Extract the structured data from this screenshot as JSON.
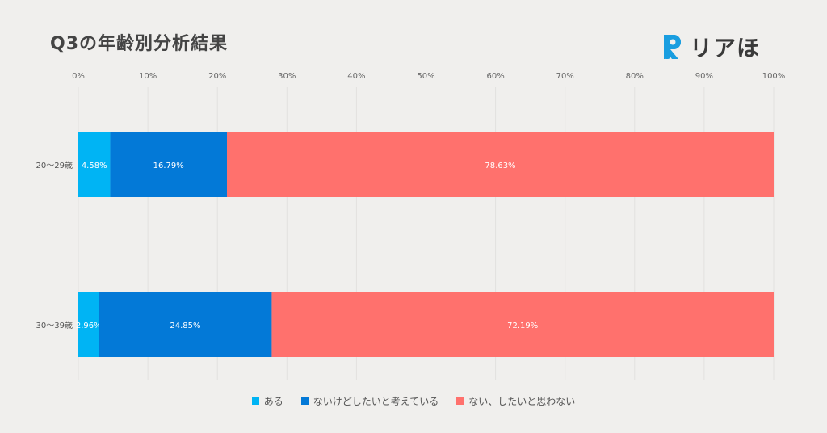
{
  "header": {
    "title": "Q3の年齢別分析結果"
  },
  "logo": {
    "text": "リアほ",
    "accent": "#1a9ee0"
  },
  "chart_data": {
    "type": "bar",
    "orientation": "horizontal",
    "stacked": true,
    "categories": [
      "20〜29歳",
      "30〜39歳"
    ],
    "series": [
      {
        "name": "ある",
        "values": [
          4.58,
          2.96
        ],
        "color": "#00b4f4"
      },
      {
        "name": "ないけどしたいと考えている",
        "values": [
          16.79,
          24.85
        ],
        "color": "#0379d7"
      },
      {
        "name": "ない、したいと思わない",
        "values": [
          78.63,
          72.19
        ],
        "color": "#ff716d"
      }
    ],
    "labels": [
      [
        "4.58%",
        "16.79%",
        "78.63%"
      ],
      [
        "2.96%",
        "24.85%",
        "72.19%"
      ]
    ],
    "xlim": [
      0,
      100
    ],
    "xticks": [
      "0%",
      "10%",
      "20%",
      "30%",
      "40%",
      "50%",
      "60%",
      "70%",
      "80%",
      "90%",
      "100%"
    ],
    "legend_position": "bottom",
    "grid": true
  }
}
